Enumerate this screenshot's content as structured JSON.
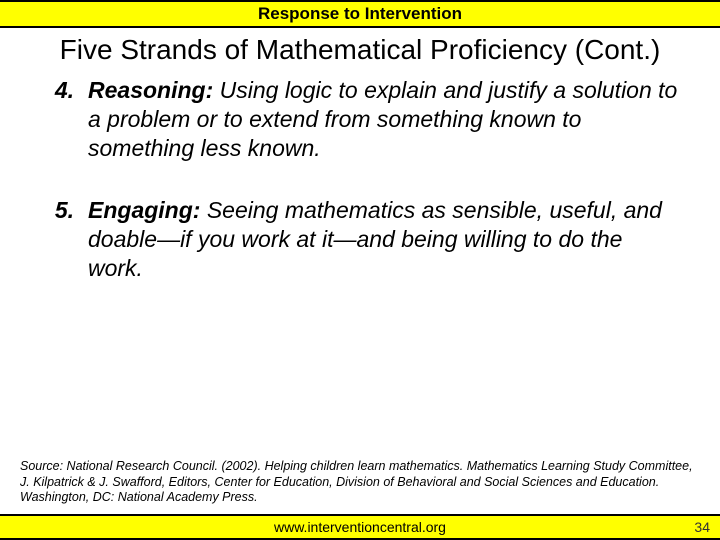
{
  "colors": {
    "banner_bg": "#ffff00",
    "border": "#000000",
    "text": "#000000",
    "background": "#ffffff"
  },
  "banner_top": "Response to Intervention",
  "title": "Five Strands of Mathematical Proficiency (Cont.)",
  "items": [
    {
      "num": "4.",
      "label": "Reasoning:",
      "text": " Using logic to explain and justify a solution to a problem or to extend from something known to something less known."
    },
    {
      "num": "5.",
      "label": "Engaging:",
      "text": " Seeing mathematics as sensible, useful, and doable—if you work at it—and being willing to do the work."
    }
  ],
  "source": "Source: National Research Council. (2002). Helping children learn mathematics. Mathematics Learning Study Committee, J. Kilpatrick & J. Swafford, Editors, Center for Education, Division of Behavioral and Social Sciences and Education. Washington, DC: National Academy Press.",
  "banner_bottom": "www.interventioncentral.org",
  "page_number": "34",
  "typography": {
    "banner_fontsize": 17,
    "title_fontsize": 28,
    "body_fontsize": 23,
    "source_fontsize": 12.5,
    "footer_fontsize": 14
  }
}
